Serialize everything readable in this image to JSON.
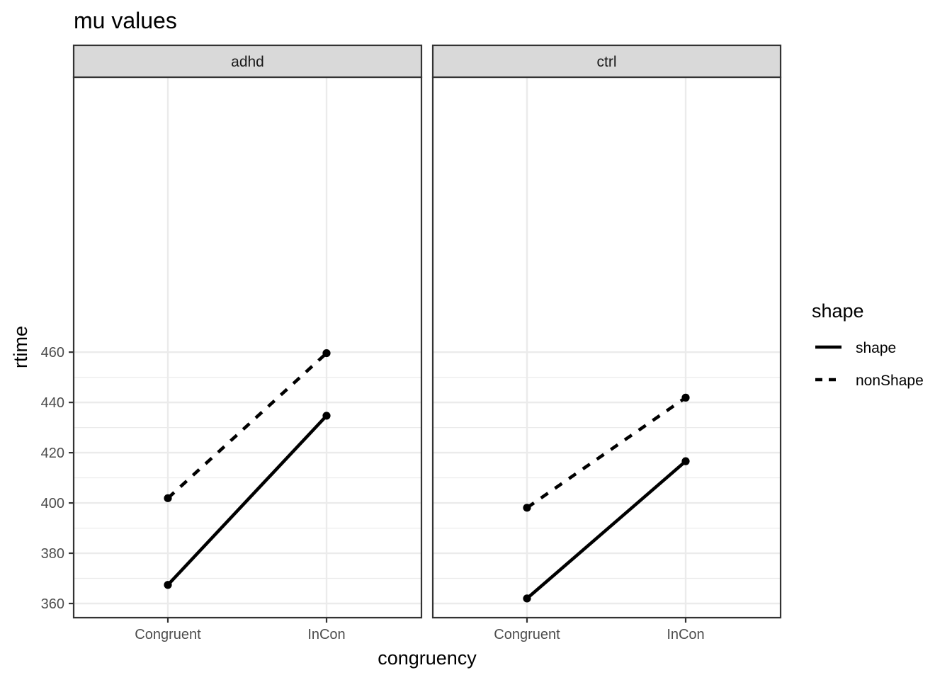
{
  "chart_data": {
    "type": "line",
    "title": "mu values",
    "xlabel": "congruency",
    "ylabel": "rtime",
    "categories": [
      "Congruent",
      "InCon"
    ],
    "ylim": [
      355,
      464
    ],
    "yticks": [
      360,
      380,
      400,
      420,
      440,
      460
    ],
    "ytick_labels": [
      "360",
      "380",
      "400",
      "420",
      "440",
      "460"
    ],
    "grid": true,
    "legend": {
      "title": "shape",
      "position": "right",
      "entries": [
        {
          "label": "shape",
          "linetype": "solid"
        },
        {
          "label": "nonShape",
          "linetype": "dashed"
        }
      ]
    },
    "panels": [
      {
        "label": "adhd",
        "series": [
          {
            "name": "shape",
            "linetype": "solid",
            "values": [
              367.4,
              434.7
            ]
          },
          {
            "name": "nonShape",
            "linetype": "dashed",
            "values": [
              401.9,
              459.6
            ]
          }
        ]
      },
      {
        "label": "ctrl",
        "series": [
          {
            "name": "shape",
            "linetype": "solid",
            "values": [
              362.0,
              416.6
            ]
          },
          {
            "name": "nonShape",
            "linetype": "dashed",
            "values": [
              398.1,
              441.9
            ]
          }
        ]
      }
    ],
    "colors": {
      "line": "#000000",
      "grid": "#ebebeb",
      "panel_border": "#333333",
      "strip_background": "#d9d9d9"
    }
  }
}
